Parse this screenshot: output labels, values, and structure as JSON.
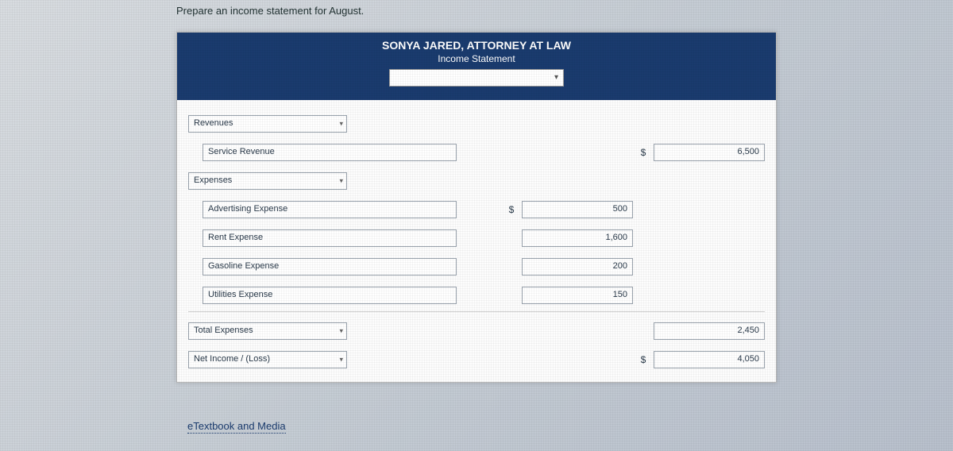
{
  "instruction": "Prepare an income statement for August.",
  "header": {
    "title": "SONYA JARED, ATTORNEY AT LAW",
    "subtitle": "Income Statement",
    "period_value": ""
  },
  "sections": {
    "revenues_label": "Revenues",
    "expenses_label": "Expenses",
    "total_expenses_label": "Total Expenses",
    "net_income_label": "Net Income / (Loss)"
  },
  "lines": {
    "service_revenue": {
      "label": "Service Revenue",
      "col2_value": "6,500",
      "col2_currency": "$"
    },
    "advertising": {
      "label": "Advertising Expense",
      "col1_value": "500",
      "col1_currency": "$"
    },
    "rent": {
      "label": "Rent Expense",
      "col1_value": "1,600"
    },
    "gasoline": {
      "label": "Gasoline Expense",
      "col1_value": "200"
    },
    "utilities": {
      "label": "Utilities Expense",
      "col1_value": "150"
    },
    "total_expenses": {
      "col2_value": "2,450"
    },
    "net_income": {
      "col2_value": "4,050",
      "col2_currency": "$"
    }
  },
  "footer": {
    "link_label": "eTextbook and Media"
  }
}
